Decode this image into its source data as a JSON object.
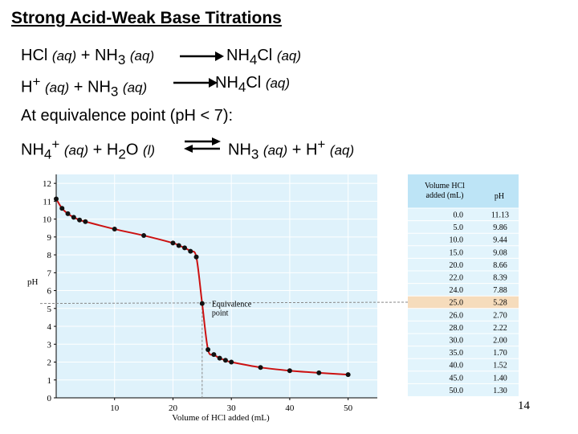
{
  "slide": {
    "title": "Strong Acid-Weak Base Titrations",
    "page_number": "14",
    "eq1": {
      "left_a": "HCl",
      "aq1": "(aq)",
      "plus": "+",
      "left_b": "NH",
      "sub3": "3",
      "aq2": "(aq)",
      "right": "NH",
      "sub4": "4",
      "right_tail": "Cl",
      "aq3": "(aq)"
    },
    "eq2": {
      "left_a": "H",
      "sup": "+",
      "aq1": "(aq)",
      "plus": "+",
      "left_b": "NH",
      "sub3": "3",
      "aq2": "(aq)",
      "right": "NH",
      "sub4": "4",
      "right_tail": "Cl",
      "aq3": "(aq)"
    },
    "equivalence_text": "At equivalence point (pH < 7):",
    "eq3": {
      "left_a": "NH",
      "sub4": "4",
      "sup": "+",
      "aq1": "(aq)",
      "plus": "+",
      "left_b": "H",
      "sub2": "2",
      "left_b_tail": "O",
      "liq": "(l)",
      "right_a": "NH",
      "sub3": "3",
      "aq2": "(aq)",
      "plus2": "+",
      "right_b": "H",
      "sup2": "+",
      "aq3": "(aq)"
    }
  },
  "colors": {
    "plot_bg": "#dff2fb",
    "curve": "#cc1111",
    "point": "#111111",
    "table_bg": "#e2f4fc",
    "table_header": "#bde4f6",
    "highlight_row": "#f6dcbc"
  },
  "chart_data": {
    "type": "line",
    "xlabel": "Volume of HCl added (mL)",
    "ylabel": "pH",
    "xlim": [
      0,
      55
    ],
    "ylim": [
      0,
      12.5
    ],
    "xticks": [
      10,
      20,
      30,
      40,
      50
    ],
    "yticks": [
      0,
      1,
      2,
      3,
      4,
      5,
      6,
      7,
      8,
      9,
      10,
      11,
      12
    ],
    "annotation": {
      "label_line1": "Equivalence",
      "label_line2": "point",
      "x": 25.0,
      "y": 5.28
    },
    "points": [
      {
        "x": 0.0,
        "y": 11.13
      },
      {
        "x": 1.0,
        "y": 10.6
      },
      {
        "x": 2.0,
        "y": 10.3
      },
      {
        "x": 3.0,
        "y": 10.1
      },
      {
        "x": 4.0,
        "y": 9.95
      },
      {
        "x": 5.0,
        "y": 9.86
      },
      {
        "x": 10.0,
        "y": 9.44
      },
      {
        "x": 15.0,
        "y": 9.08
      },
      {
        "x": 20.0,
        "y": 8.66
      },
      {
        "x": 21.0,
        "y": 8.52
      },
      {
        "x": 22.0,
        "y": 8.39
      },
      {
        "x": 23.0,
        "y": 8.2
      },
      {
        "x": 24.0,
        "y": 7.88
      },
      {
        "x": 25.0,
        "y": 5.28
      },
      {
        "x": 26.0,
        "y": 2.7
      },
      {
        "x": 27.0,
        "y": 2.42
      },
      {
        "x": 28.0,
        "y": 2.22
      },
      {
        "x": 29.0,
        "y": 2.1
      },
      {
        "x": 30.0,
        "y": 2.0
      },
      {
        "x": 35.0,
        "y": 1.7
      },
      {
        "x": 40.0,
        "y": 1.52
      },
      {
        "x": 45.0,
        "y": 1.4
      },
      {
        "x": 50.0,
        "y": 1.3
      }
    ],
    "table": {
      "header_col1_line1": "Volume HCl",
      "header_col1_line2": "added (mL)",
      "header_col2": "pH",
      "highlight_index": 7,
      "rows": [
        [
          "0.0",
          "11.13"
        ],
        [
          "5.0",
          "9.86"
        ],
        [
          "10.0",
          "9.44"
        ],
        [
          "15.0",
          "9.08"
        ],
        [
          "20.0",
          "8.66"
        ],
        [
          "22.0",
          "8.39"
        ],
        [
          "24.0",
          "7.88"
        ],
        [
          "25.0",
          "5.28"
        ],
        [
          "26.0",
          "2.70"
        ],
        [
          "28.0",
          "2.22"
        ],
        [
          "30.0",
          "2.00"
        ],
        [
          "35.0",
          "1.70"
        ],
        [
          "40.0",
          "1.52"
        ],
        [
          "45.0",
          "1.40"
        ],
        [
          "50.0",
          "1.30"
        ]
      ]
    }
  }
}
